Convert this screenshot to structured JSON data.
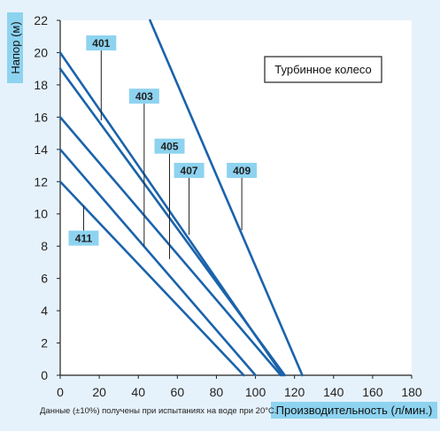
{
  "chart_data": {
    "type": "line",
    "ylabel": "Напор (м)",
    "xlabel": "Производительность (л/мин.)",
    "xlim": [
      0,
      180
    ],
    "ylim": [
      0,
      22
    ],
    "x_ticks": [
      0,
      20,
      40,
      60,
      80,
      100,
      120,
      140,
      160,
      180
    ],
    "y_ticks": [
      0,
      2,
      4,
      6,
      8,
      10,
      12,
      14,
      16,
      18,
      20,
      22
    ],
    "grid": false,
    "legend_box": "Турбинное колесо",
    "note": "Данные (±10%) получены при испытаниях на воде при 20°C.",
    "colors": {
      "line": "#1b63ab",
      "label_bg": "#8dd3f0",
      "axis_label_bg": "#8dd3f0",
      "background": "#e6f2fb"
    },
    "series": [
      {
        "name": "411",
        "x": [
          0,
          94
        ],
        "y": [
          12,
          0
        ],
        "label_x": 12,
        "label_y": 10.5
      },
      {
        "name": "407",
        "x": [
          0,
          100
        ],
        "y": [
          14,
          0
        ],
        "label_x": 66,
        "label_y": 8.7
      },
      {
        "name": "405",
        "x": [
          0,
          113
        ],
        "y": [
          16,
          0
        ],
        "label_x": 56,
        "label_y": 7.2
      },
      {
        "name": "403",
        "x": [
          0,
          115
        ],
        "y": [
          19,
          0
        ],
        "label_x": 43,
        "label_y": 8.0
      },
      {
        "name": "401",
        "x": [
          0,
          114
        ],
        "y": [
          20,
          0
        ],
        "label_x": 21,
        "label_y": 15.8
      },
      {
        "name": "409",
        "x": [
          46,
          124
        ],
        "y": [
          22,
          0
        ],
        "label_x": 93,
        "label_y": 9.0
      }
    ],
    "callouts": [
      {
        "series": "401",
        "box_x": 21,
        "box_y": 20.6
      },
      {
        "series": "403",
        "box_x": 43,
        "box_y": 17.3
      },
      {
        "series": "405",
        "box_x": 56,
        "box_y": 14.2
      },
      {
        "series": "407",
        "box_x": 66,
        "box_y": 12.7
      },
      {
        "series": "409",
        "box_x": 93,
        "box_y": 12.7
      },
      {
        "series": "411",
        "box_x": 12,
        "box_y": 8.5
      }
    ]
  }
}
